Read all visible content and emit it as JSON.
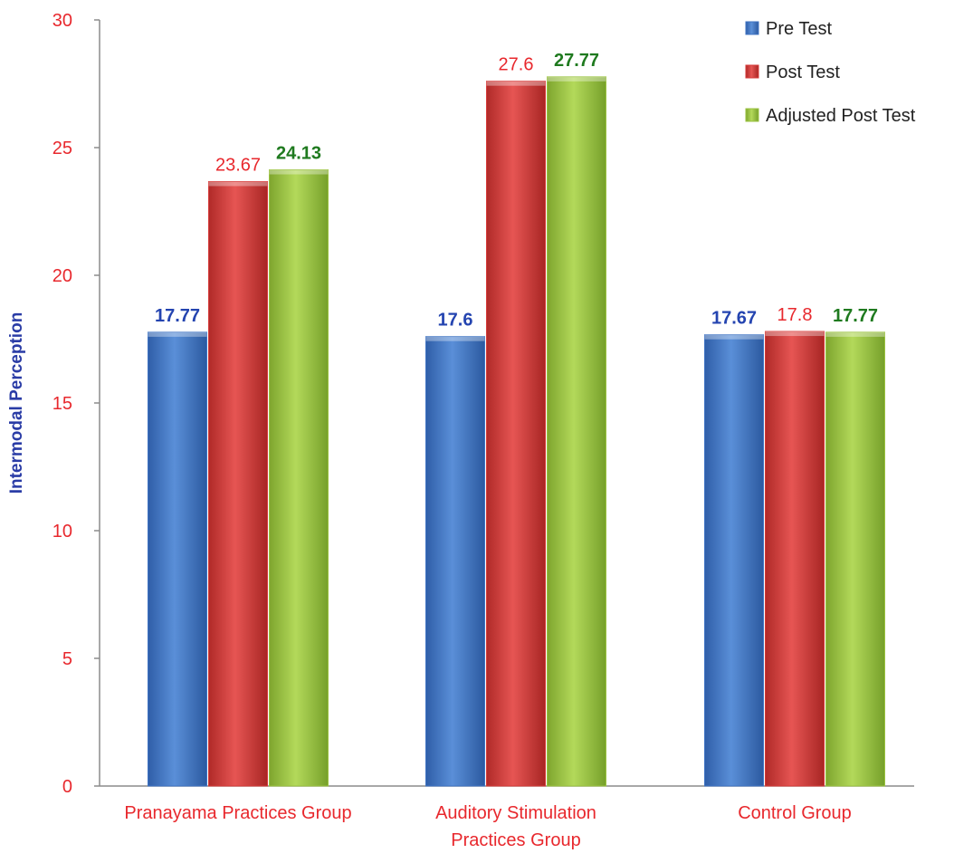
{
  "chart_data": {
    "type": "bar",
    "categories": [
      [
        "Pranayama Practices Group"
      ],
      [
        "Auditory Stimulation",
        "Practices Group"
      ],
      [
        "Control Group"
      ]
    ],
    "series": [
      {
        "name": "Pre Test",
        "values": [
          17.77,
          17.6,
          17.67
        ],
        "color": "#3f73c3",
        "label_color": "#2444b0",
        "label_bold": true
      },
      {
        "name": "Post Test",
        "values": [
          23.67,
          27.6,
          17.8
        ],
        "color": "#d63a38",
        "label_color": "#e8282d",
        "label_bold": false
      },
      {
        "name": "Adjusted Post Test",
        "values": [
          24.13,
          27.77,
          17.77
        ],
        "color": "#9ac23f",
        "label_color": "#1f7a1f",
        "label_bold": true
      }
    ],
    "title": "",
    "xlabel": "",
    "ylabel": "Intermodal Perception",
    "ylim": [
      0,
      30
    ],
    "yticks": [
      0,
      5,
      10,
      15,
      20,
      25,
      30
    ],
    "grid": false,
    "legend_position": "top-right"
  }
}
